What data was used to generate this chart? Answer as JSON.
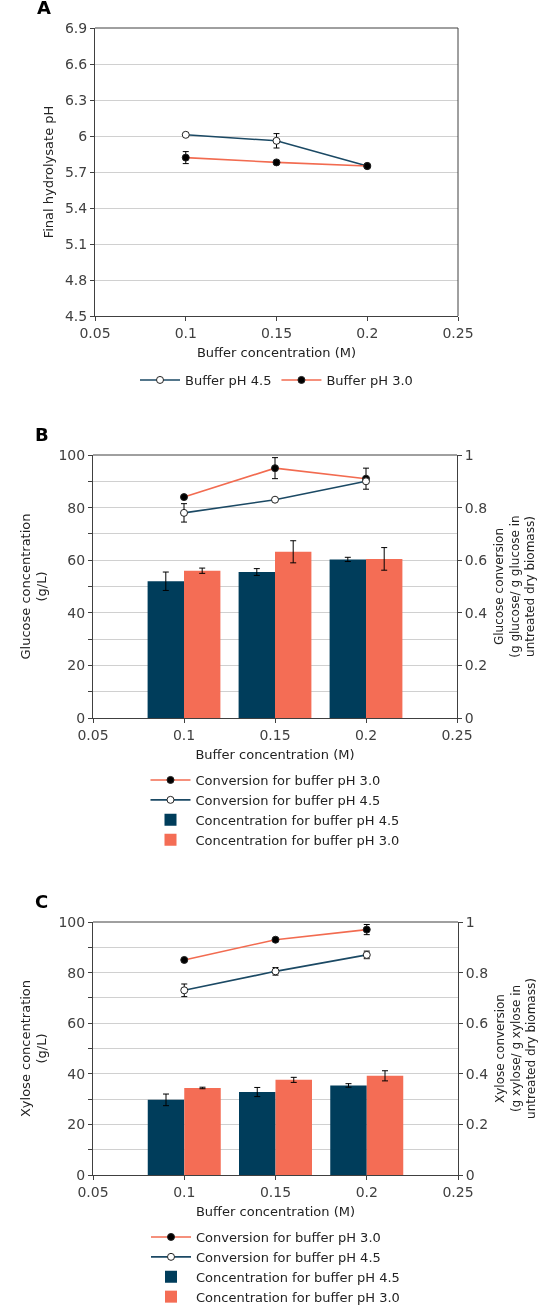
{
  "chart_data": [
    {
      "type": "line",
      "title": "A",
      "xlabel": "Buffer concentration (M)",
      "ylabel": "Final hydrolysate pH",
      "xlim": [
        0.05,
        0.25
      ],
      "xticks": [
        0.05,
        0.1,
        0.15,
        0.2,
        0.25
      ],
      "ylim": [
        4.5,
        6.9
      ],
      "yticks": [
        4.5,
        4.8,
        5.1,
        5.4,
        5.7,
        6,
        6.3,
        6.6,
        6.9
      ],
      "grid": "y",
      "legend": "bottom",
      "marker": "circle",
      "series": [
        {
          "name": "Buffer pH 4.5",
          "color": "#1b4964",
          "x": [
            0.1,
            0.15,
            0.2
          ],
          "values": [
            6.01,
            5.96,
            5.75
          ],
          "errors": [
            null,
            0.06,
            null
          ]
        },
        {
          "name": "Buffer pH 3.0",
          "color": "#f26b50",
          "x": [
            0.1,
            0.15,
            0.2
          ],
          "values": [
            5.82,
            5.78,
            5.75
          ],
          "errors": [
            0.05,
            null,
            null
          ]
        }
      ]
    },
    {
      "type": "bar",
      "title": "B",
      "xlabel": "Buffer concentration (M)",
      "ylabel": "Glucose concentration\n(g/L)",
      "y2label": "Glucose conversion\n(g glucose/ g glucose in\nuntreated dry biomass)",
      "xlim": [
        0.05,
        0.25
      ],
      "xticks": [
        0.05,
        0.1,
        0.15,
        0.2,
        0.25
      ],
      "ylim": [
        0,
        100
      ],
      "yticks": [
        0,
        {
          "value": 10,
          "label": null
        },
        20,
        {
          "value": 30,
          "label": null
        },
        40,
        {
          "value": 50,
          "label": null
        },
        60,
        {
          "value": 70,
          "label": null
        },
        80,
        {
          "value": 90,
          "label": null
        },
        100
      ],
      "y2lim": [
        0,
        1
      ],
      "y2ticks": [
        0,
        0.2,
        0.4,
        0.6,
        0.8,
        1
      ],
      "grid": "y",
      "legend": "bottom",
      "series": [
        {
          "name": "Conversion for buffer pH 3.0",
          "type": "line",
          "axis": "y2",
          "marker": "circle",
          "color": "#f26b50",
          "x": [
            0.1,
            0.15,
            0.2
          ],
          "values": [
            0.84,
            0.95,
            0.91
          ],
          "errors": [
            null,
            0.04,
            0.04
          ]
        },
        {
          "name": "Conversion for buffer pH 4.5",
          "type": "line",
          "axis": "y2",
          "marker": "circle",
          "color": "#1b4964",
          "x": [
            0.1,
            0.15,
            0.2
          ],
          "values": [
            0.78,
            0.83,
            0.9
          ],
          "errors": [
            0.035,
            null,
            null
          ]
        },
        {
          "name": "Concentration for buffer pH 4.5",
          "color": "#003d5b",
          "x": [
            0.09,
            0.14,
            0.19
          ],
          "values": [
            52,
            55.5,
            60.3
          ],
          "errors": [
            3.5,
            1.3,
            0.8
          ]
        },
        {
          "name": "Concentration for buffer pH 3.0",
          "color": "#f46d55",
          "x": [
            0.11,
            0.16,
            0.21
          ],
          "values": [
            56,
            63.2,
            60.5
          ],
          "errors": [
            1,
            4.2,
            4.3
          ]
        }
      ]
    },
    {
      "type": "bar",
      "title": "C",
      "xlabel": "Buffer concentration (M)",
      "ylabel": "Xylose concentration\n(g/L)",
      "y2label": "Xylose conversion\n(g xylose/ g xylose in\nuntreated dry biomass)",
      "xlim": [
        0.05,
        0.25
      ],
      "xticks": [
        0.05,
        0.1,
        0.15,
        0.2,
        0.25
      ],
      "ylim": [
        0,
        100
      ],
      "yticks": [
        0,
        {
          "value": 10,
          "label": null
        },
        20,
        {
          "value": 30,
          "label": null
        },
        40,
        {
          "value": 50,
          "label": null
        },
        60,
        {
          "value": 70,
          "label": null
        },
        80,
        {
          "value": 90,
          "label": null
        },
        100
      ],
      "y2lim": [
        0,
        1
      ],
      "y2ticks": [
        0,
        0.2,
        0.4,
        0.6,
        0.8,
        1
      ],
      "grid": "y",
      "legend": "bottom",
      "series": [
        {
          "name": "Conversion for buffer pH 3.0",
          "type": "line",
          "axis": "y2",
          "marker": "circle",
          "color": "#f26b50",
          "x": [
            0.1,
            0.15,
            0.2
          ],
          "values": [
            0.85,
            0.93,
            0.97
          ],
          "errors": [
            null,
            null,
            0.02
          ]
        },
        {
          "name": "Conversion for buffer pH 4.5",
          "type": "line",
          "axis": "y2",
          "marker": "circle",
          "color": "#1b4964",
          "x": [
            0.1,
            0.15,
            0.2
          ],
          "values": [
            0.73,
            0.805,
            0.87
          ],
          "errors": [
            0.025,
            0.015,
            0.015
          ]
        },
        {
          "name": "Concentration for buffer pH 4.5",
          "color": "#003d5b",
          "x": [
            0.09,
            0.14,
            0.19
          ],
          "values": [
            29.7,
            32.8,
            35.4
          ],
          "errors": [
            2.3,
            1.8,
            0.7
          ]
        },
        {
          "name": "Concentration for buffer pH 3.0",
          "color": "#f46d55",
          "x": [
            0.11,
            0.16,
            0.21
          ],
          "values": [
            34.4,
            37.6,
            39.2
          ],
          "errors": [
            0.3,
            1,
            2
          ]
        }
      ]
    }
  ]
}
